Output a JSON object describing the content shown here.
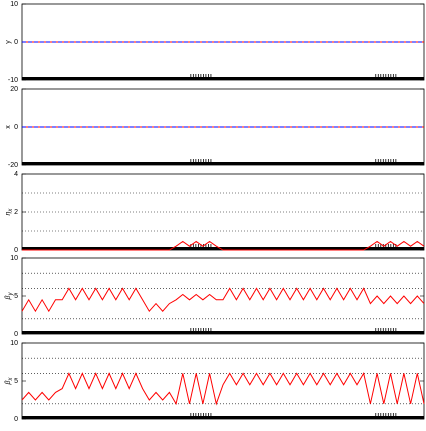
{
  "chart_data": [
    {
      "type": "line",
      "ylabel": "y",
      "ylim": [
        -10,
        10
      ],
      "yticks": [
        -10,
        0,
        10
      ],
      "xlim": [
        0,
        60
      ],
      "hlines": [],
      "series": [
        {
          "color": "#ff0000",
          "x": [
            0,
            60
          ],
          "values": [
            0,
            0
          ]
        },
        {
          "color": "#0000ff",
          "dash": true,
          "x": [
            0,
            60
          ],
          "values": [
            0,
            0
          ]
        }
      ]
    },
    {
      "type": "line",
      "ylabel": "x",
      "ylim": [
        -20,
        20
      ],
      "yticks": [
        -20,
        0,
        20
      ],
      "xlim": [
        0,
        60
      ],
      "hlines": [],
      "series": [
        {
          "color": "#ff0000",
          "x": [
            0,
            60
          ],
          "values": [
            0,
            0
          ]
        },
        {
          "color": "#0000ff",
          "dash": true,
          "x": [
            0,
            60
          ],
          "values": [
            0,
            0
          ]
        }
      ]
    },
    {
      "type": "line",
      "ylabel": "η",
      "ylabel_sub": "x",
      "ylim": [
        0,
        4
      ],
      "yticks": [
        0,
        2,
        4
      ],
      "xlim": [
        0,
        60
      ],
      "hlines": [
        1,
        2,
        3
      ],
      "series": [
        {
          "color": "#ff0000",
          "x": [
            0,
            1,
            2,
            3,
            4,
            5,
            6,
            7,
            8,
            9,
            10,
            11,
            12,
            13,
            14,
            15,
            16,
            17,
            18,
            19,
            20,
            21,
            22,
            23,
            24,
            25,
            26,
            27,
            28,
            29,
            30,
            31,
            32,
            33,
            34,
            35,
            36,
            37,
            38,
            39,
            40,
            41,
            42,
            43,
            44,
            45,
            46,
            47,
            48,
            49,
            50,
            51,
            52,
            53,
            54,
            55,
            56,
            57,
            58,
            59,
            60
          ],
          "values": [
            0,
            0,
            0,
            0,
            0,
            0,
            0,
            0,
            0,
            0,
            0,
            0,
            0,
            0,
            0,
            0,
            0,
            0,
            0,
            0,
            0,
            0,
            0,
            0.2,
            0.45,
            0.2,
            0.45,
            0.2,
            0.45,
            0.2,
            0,
            0,
            0,
            0,
            0,
            0,
            0,
            0,
            0,
            0,
            0,
            0,
            0,
            0,
            0,
            0,
            0,
            0,
            0,
            0,
            0,
            0,
            0.2,
            0.45,
            0.2,
            0.45,
            0.2,
            0.45,
            0.2,
            0.45,
            0.2
          ]
        }
      ]
    },
    {
      "type": "line",
      "ylabel": "β",
      "ylabel_sub": "y",
      "ylim": [
        0,
        10
      ],
      "yticks": [
        0,
        5,
        10
      ],
      "xlim": [
        0,
        60
      ],
      "hlines": [
        2,
        6,
        8
      ],
      "series": [
        {
          "color": "#ff0000",
          "x": [
            0,
            1,
            2,
            3,
            4,
            5,
            6,
            7,
            8,
            9,
            10,
            11,
            12,
            13,
            14,
            15,
            16,
            17,
            18,
            19,
            20,
            21,
            22,
            23,
            24,
            25,
            26,
            27,
            28,
            29,
            30,
            31,
            32,
            33,
            34,
            35,
            36,
            37,
            38,
            39,
            40,
            41,
            42,
            43,
            44,
            45,
            46,
            47,
            48,
            49,
            50,
            51,
            52,
            53,
            54,
            55,
            56,
            57,
            58,
            59,
            60
          ],
          "values": [
            3,
            4.5,
            3,
            4.5,
            3,
            4.5,
            4.5,
            6,
            4.5,
            6,
            4.5,
            6,
            4.5,
            6,
            4.5,
            6,
            4.5,
            6,
            4.5,
            3,
            4,
            3,
            4,
            4.5,
            5.2,
            4.5,
            5.2,
            4.5,
            5.2,
            4.5,
            4.5,
            6,
            4.5,
            6,
            4.5,
            6,
            4.5,
            6,
            4.5,
            6,
            4.5,
            6,
            4.5,
            6,
            4.5,
            6,
            4.5,
            6,
            4.5,
            6,
            4.5,
            6,
            4,
            5,
            4,
            5,
            4,
            5,
            4,
            5,
            4
          ]
        }
      ]
    },
    {
      "type": "line",
      "ylabel": "β",
      "ylabel_sub": "x",
      "ylim": [
        0,
        10
      ],
      "yticks": [
        0,
        5,
        10
      ],
      "xlim": [
        0,
        60
      ],
      "hlines": [
        2,
        6,
        8
      ],
      "series": [
        {
          "color": "#ff0000",
          "x": [
            0,
            1,
            2,
            3,
            4,
            5,
            6,
            7,
            8,
            9,
            10,
            11,
            12,
            13,
            14,
            15,
            16,
            17,
            18,
            19,
            20,
            21,
            22,
            23,
            24,
            25,
            26,
            27,
            28,
            29,
            30,
            31,
            32,
            33,
            34,
            35,
            36,
            37,
            38,
            39,
            40,
            41,
            42,
            43,
            44,
            45,
            46,
            47,
            48,
            49,
            50,
            51,
            52,
            53,
            54,
            55,
            56,
            57,
            58,
            59,
            60
          ],
          "values": [
            2.5,
            3.5,
            2.5,
            3.5,
            2.5,
            3.5,
            4,
            6,
            4,
            6,
            4,
            6,
            4,
            6,
            4,
            6,
            4,
            6,
            4,
            2.5,
            3.5,
            2.5,
            3.5,
            2,
            6,
            2,
            6,
            2,
            6,
            2,
            4.5,
            6,
            4.5,
            6,
            4.5,
            6,
            4.5,
            6,
            4.5,
            6,
            4.5,
            6,
            4.5,
            6,
            4.5,
            6,
            4.5,
            6,
            4.5,
            6,
            4.5,
            6,
            2,
            6,
            2,
            6,
            2,
            6,
            2,
            6,
            2
          ]
        }
      ]
    }
  ]
}
